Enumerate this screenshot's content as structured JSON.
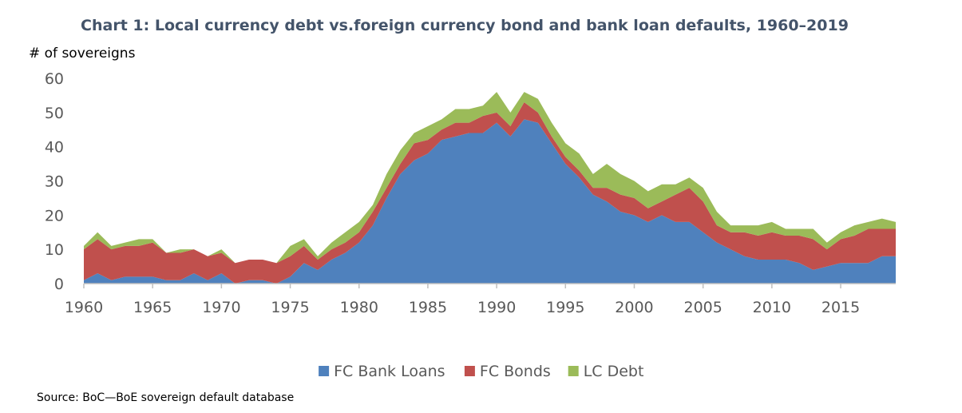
{
  "chart_data": {
    "type": "area",
    "stacked": true,
    "title": "Chart 1: Local currency debt vs.foreign currency bond and bank loan defaults, 1960–2019",
    "ylabel": "# of sovereigns",
    "xlabel": "",
    "source": "Source: BoC—BoE sovereign default database",
    "xlim": [
      1960,
      2019
    ],
    "ylim": [
      0,
      60
    ],
    "x_ticks": [
      1960,
      1965,
      1970,
      1975,
      1980,
      1985,
      1990,
      1995,
      2000,
      2005,
      2010,
      2015
    ],
    "y_ticks": [
      0,
      10,
      20,
      30,
      40,
      50,
      60
    ],
    "grid": false,
    "legend_position": "bottom",
    "x": [
      1960,
      1961,
      1962,
      1963,
      1964,
      1965,
      1966,
      1967,
      1968,
      1969,
      1970,
      1971,
      1972,
      1973,
      1974,
      1975,
      1976,
      1977,
      1978,
      1979,
      1980,
      1981,
      1982,
      1983,
      1984,
      1985,
      1986,
      1987,
      1988,
      1989,
      1990,
      1991,
      1992,
      1993,
      1994,
      1995,
      1996,
      1997,
      1998,
      1999,
      2000,
      2001,
      2002,
      2003,
      2004,
      2005,
      2006,
      2007,
      2008,
      2009,
      2010,
      2011,
      2012,
      2013,
      2014,
      2015,
      2016,
      2017,
      2018,
      2019
    ],
    "series": [
      {
        "name": "FC Bank Loans",
        "color": "#4f81bd",
        "values": [
          1,
          3,
          1,
          2,
          2,
          2,
          1,
          1,
          3,
          1,
          3,
          0,
          1,
          1,
          0,
          2,
          6,
          4,
          7,
          9,
          12,
          17,
          25,
          32,
          36,
          38,
          42,
          43,
          44,
          44,
          47,
          43,
          48,
          47,
          41,
          35,
          31,
          26,
          24,
          21,
          20,
          18,
          20,
          18,
          18,
          15,
          12,
          10,
          8,
          7,
          7,
          7,
          6,
          4,
          5,
          6,
          6,
          6,
          8,
          8
        ]
      },
      {
        "name": "FC Bonds",
        "color": "#c0504d",
        "values": [
          9,
          10,
          9,
          9,
          9,
          10,
          8,
          8,
          7,
          7,
          6,
          6,
          6,
          6,
          6,
          6,
          5,
          3,
          3,
          3,
          3,
          4,
          3,
          3,
          5,
          4,
          3,
          4,
          3,
          5,
          3,
          3,
          5,
          3,
          2,
          2,
          2,
          2,
          4,
          5,
          5,
          4,
          4,
          8,
          10,
          9,
          5,
          5,
          7,
          7,
          8,
          7,
          8,
          9,
          5,
          7,
          8,
          10,
          8,
          8
        ]
      },
      {
        "name": "LC Debt",
        "color": "#9bbb59",
        "values": [
          1,
          2,
          1,
          1,
          2,
          1,
          0,
          1,
          0,
          0,
          1,
          0,
          0,
          0,
          0,
          3,
          2,
          1,
          2,
          3,
          3,
          2,
          4,
          4,
          3,
          4,
          3,
          4,
          4,
          3,
          6,
          4,
          3,
          4,
          4,
          4,
          5,
          4,
          7,
          6,
          5,
          5,
          5,
          3,
          3,
          4,
          4,
          2,
          2,
          3,
          3,
          2,
          2,
          3,
          2,
          2,
          3,
          2,
          3,
          2
        ]
      }
    ]
  }
}
